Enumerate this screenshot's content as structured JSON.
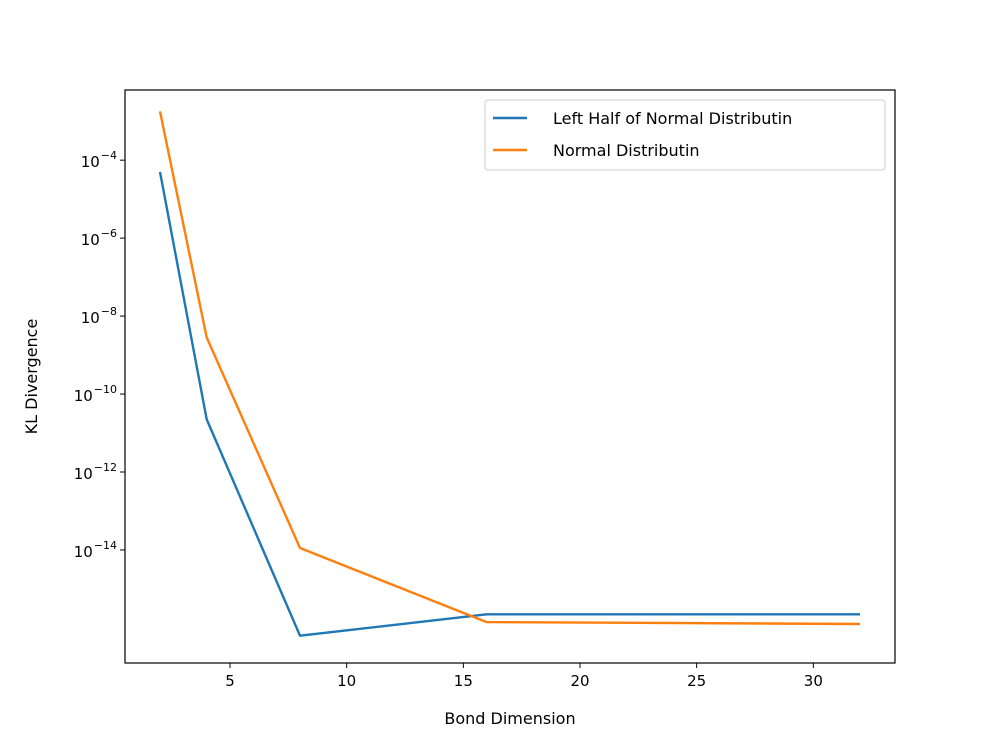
{
  "chart_data": {
    "type": "line",
    "title": "",
    "xlabel": "Bond Dimension",
    "ylabel": "KL Divergence",
    "xscale": "linear",
    "yscale": "log",
    "xlim": [
      0.5,
      33.5
    ],
    "ylim_exp": [
      -16.9,
      -2.2
    ],
    "ylim": [
      1.26e-17,
      0.0063
    ],
    "grid": false,
    "legend_placement": "top-right",
    "x_ticks": [
      5,
      10,
      15,
      20,
      25,
      30
    ],
    "y_ticks": [
      {
        "exp": -14,
        "base": "10",
        "power": "−14"
      },
      {
        "exp": -12,
        "base": "10",
        "power": "−12"
      },
      {
        "exp": -10,
        "base": "10",
        "power": "−10"
      },
      {
        "exp": -8,
        "base": "10",
        "power": "−8"
      },
      {
        "exp": -6,
        "base": "10",
        "power": "−6"
      },
      {
        "exp": -4,
        "base": "10",
        "power": "−4"
      }
    ],
    "series": [
      {
        "name": "Left Half of Normal Distributin",
        "color": "#1f77b4",
        "x": [
          2,
          4,
          8,
          16,
          32
        ],
        "y_exp": [
          -4.3,
          -10.65,
          -16.2,
          -15.65,
          -15.65
        ]
      },
      {
        "name": "Normal Distributin",
        "color": "#ff7f0e",
        "x": [
          2,
          4,
          8,
          16,
          32
        ],
        "y_exp": [
          -2.75,
          -8.55,
          -13.95,
          -15.85,
          -15.9
        ]
      }
    ]
  }
}
